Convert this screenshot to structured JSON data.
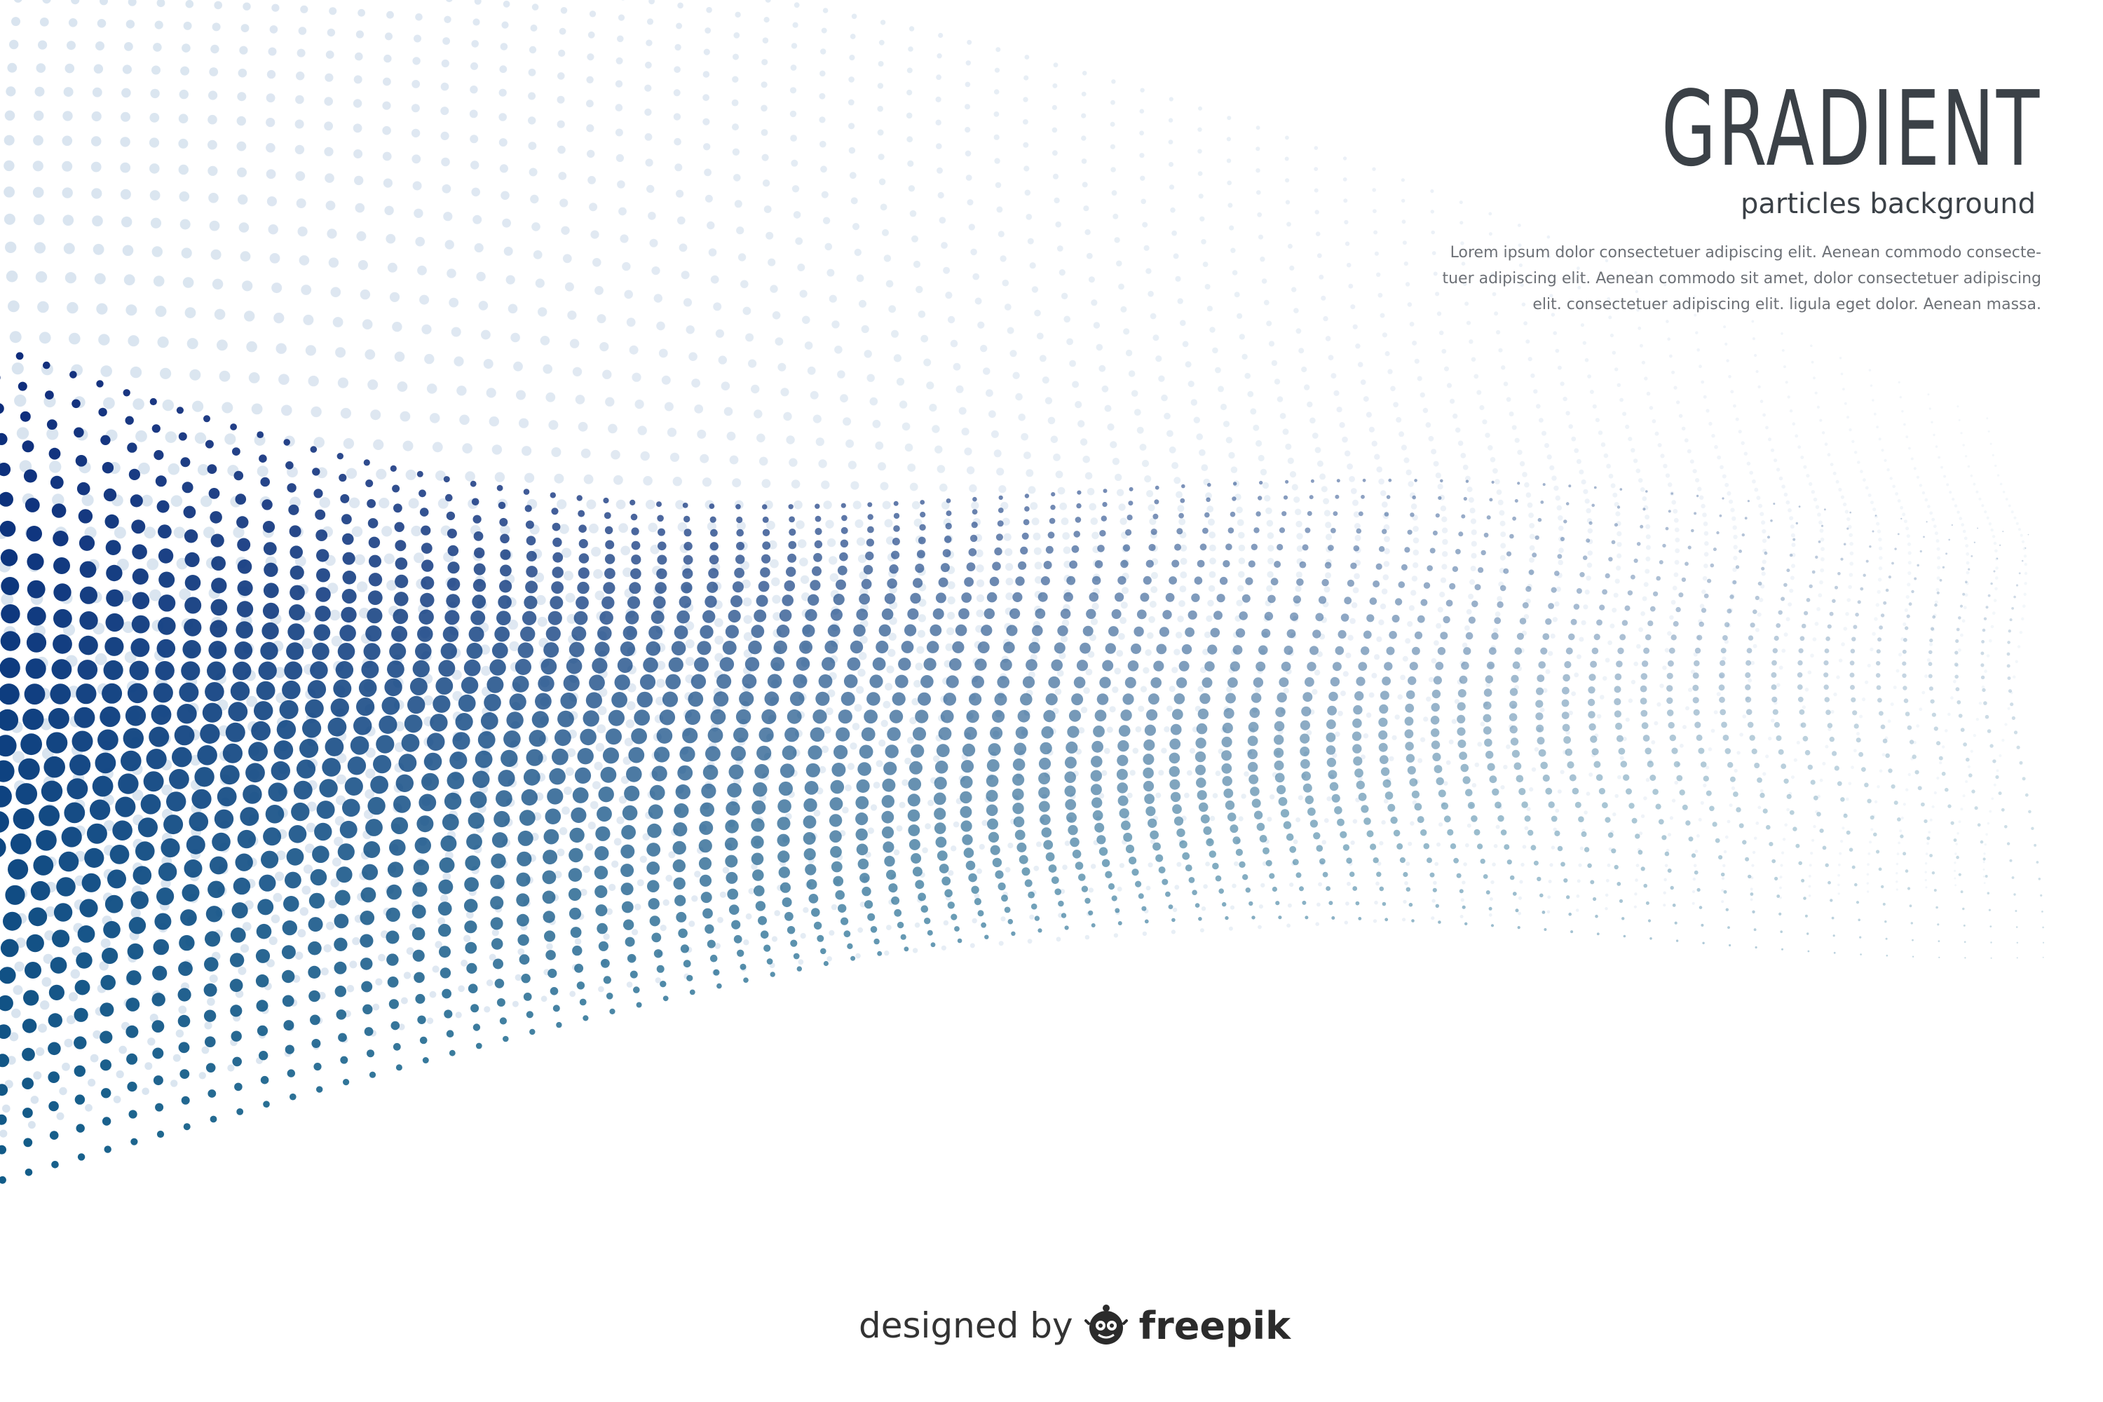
{
  "header": {
    "title": "GRADIENT",
    "subtitle": "particles background",
    "body_lines": [
      "Lorem ipsum dolor consectetuer adipiscing elit. Aenean commodo consecte-",
      "tuer adipiscing elit. Aenean commodo sit amet, dolor consectetuer adipiscing",
      "elit. consectetuer adipiscing elit.  ligula eget dolor. Aenean massa."
    ]
  },
  "credit": {
    "designed_by": "designed by",
    "brand": "freepik",
    "logo_icon": "freepik-logo-icon"
  },
  "colors": {
    "dark_dot": "#0d2a7a",
    "teal_dot": "#0f5f88",
    "light_dot": "#b9cde2",
    "title": "#3b4147",
    "text": "#6d7177"
  }
}
